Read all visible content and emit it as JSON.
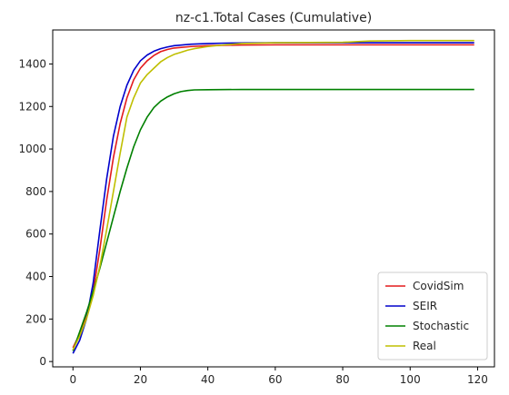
{
  "chart_data": {
    "type": "line",
    "title": "nz-c1.Total Cases (Cumulative)",
    "xlabel": "",
    "ylabel": "",
    "xlim": [
      -6,
      125
    ],
    "ylim": [
      -25,
      1560
    ],
    "xticks": [
      0,
      20,
      40,
      60,
      80,
      100,
      120
    ],
    "yticks": [
      0,
      200,
      400,
      600,
      800,
      1000,
      1200,
      1400
    ],
    "grid": false,
    "legend_position": "lower right",
    "series": [
      {
        "name": "CovidSim",
        "color": "#e31a1c",
        "x": [
          0,
          2,
          4,
          6,
          8,
          10,
          12,
          14,
          16,
          18,
          20,
          22,
          24,
          26,
          28,
          30,
          35,
          40,
          45,
          50,
          60,
          80,
          100,
          119
        ],
        "y": [
          65,
          130,
          210,
          330,
          530,
          760,
          960,
          1120,
          1240,
          1325,
          1380,
          1415,
          1440,
          1458,
          1468,
          1475,
          1482,
          1486,
          1488,
          1489,
          1490,
          1490,
          1490,
          1490
        ]
      },
      {
        "name": "SEIR",
        "color": "#0000cc",
        "x": [
          0,
          2,
          4,
          6,
          8,
          10,
          12,
          14,
          16,
          18,
          20,
          22,
          24,
          26,
          28,
          30,
          35,
          40,
          45,
          50,
          60,
          80,
          100,
          119
        ],
        "y": [
          38,
          100,
          200,
          370,
          620,
          860,
          1060,
          1200,
          1300,
          1370,
          1415,
          1442,
          1460,
          1472,
          1480,
          1486,
          1493,
          1496,
          1498,
          1499,
          1500,
          1500,
          1500,
          1500
        ]
      },
      {
        "name": "Stochastic",
        "color": "#008000",
        "x": [
          0,
          2,
          4,
          6,
          8,
          10,
          12,
          14,
          16,
          18,
          20,
          22,
          24,
          26,
          28,
          30,
          32,
          34,
          36,
          40,
          50,
          60,
          80,
          100,
          119
        ],
        "y": [
          50,
          140,
          230,
          330,
          440,
          560,
          680,
          800,
          910,
          1010,
          1090,
          1150,
          1195,
          1225,
          1245,
          1260,
          1270,
          1275,
          1278,
          1279,
          1280,
          1280,
          1280,
          1280,
          1280
        ]
      },
      {
        "name": "Real",
        "color": "#bfbf00",
        "x": [
          0,
          2,
          4,
          6,
          8,
          10,
          12,
          14,
          16,
          18,
          20,
          22,
          24,
          26,
          28,
          30,
          32,
          34,
          36,
          40,
          45,
          50,
          60,
          80,
          88,
          100,
          119
        ],
        "y": [
          55,
          120,
          200,
          310,
          450,
          620,
          800,
          980,
          1150,
          1240,
          1310,
          1350,
          1380,
          1410,
          1430,
          1445,
          1455,
          1465,
          1472,
          1482,
          1490,
          1496,
          1500,
          1502,
          1508,
          1510,
          1510
        ]
      }
    ]
  }
}
